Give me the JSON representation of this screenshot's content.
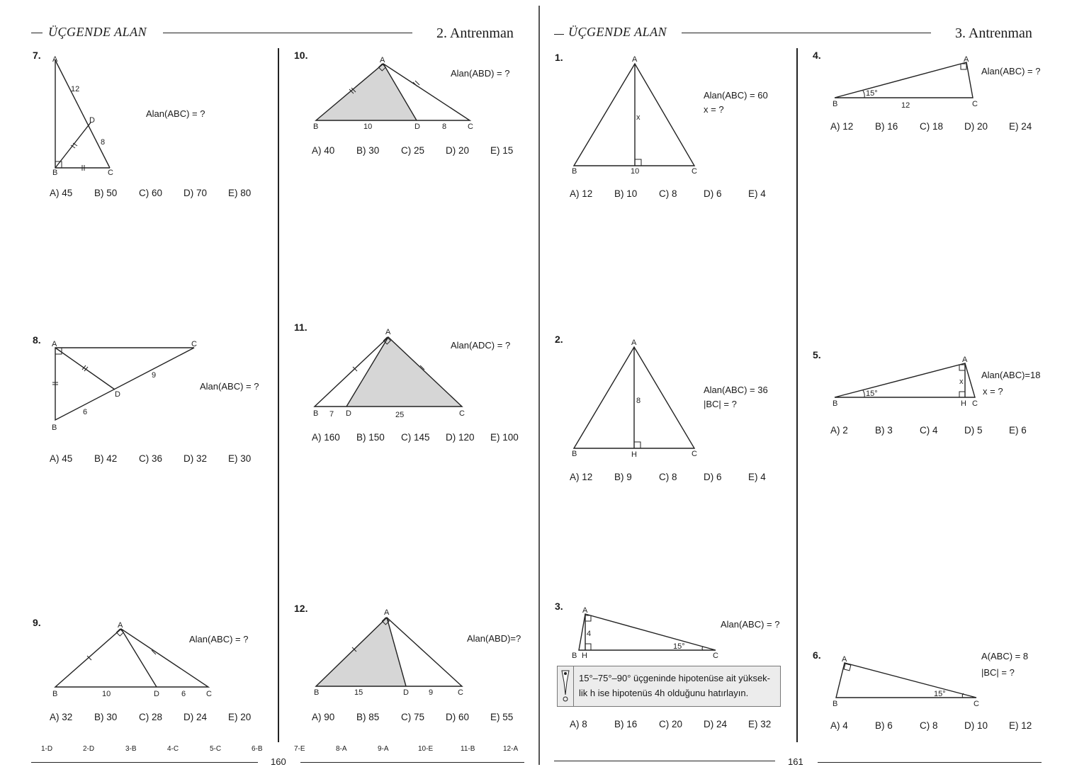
{
  "header": {
    "left_title": "ÜÇGENDE ALAN",
    "left_training": "2. Antrenman",
    "right_title": "ÜÇGENDE ALAN",
    "right_training": "3. Antrenman"
  },
  "questions": {
    "q7": {
      "num": "7.",
      "prompt": "Alan(ABC) = ?",
      "labels": {
        "A": "A",
        "B": "B",
        "C": "C",
        "D": "D",
        "ad": "12",
        "dc": "8"
      },
      "options": [
        "A) 45",
        "B) 50",
        "C) 60",
        "D) 70",
        "E) 80"
      ]
    },
    "q8": {
      "num": "8.",
      "prompt": "Alan(ABC) = ?",
      "labels": {
        "A": "A",
        "B": "B",
        "C": "C",
        "D": "D",
        "dc": "9",
        "bd": "6"
      },
      "options": [
        "A) 45",
        "B) 42",
        "C) 36",
        "D) 32",
        "E) 30"
      ]
    },
    "q9": {
      "num": "9.",
      "prompt": "Alan(ABC) = ?",
      "labels": {
        "A": "A",
        "B": "B",
        "C": "C",
        "D": "D",
        "bd": "10",
        "dc": "6"
      },
      "options": [
        "A) 32",
        "B) 30",
        "C) 28",
        "D) 24",
        "E) 20"
      ]
    },
    "q10": {
      "num": "10.",
      "prompt": "Alan(ABD) = ?",
      "labels": {
        "A": "A",
        "B": "B",
        "C": "C",
        "D": "D",
        "bd": "10",
        "dc": "8"
      },
      "options": [
        "A) 40",
        "B) 30",
        "C) 25",
        "D) 20",
        "E) 15"
      ]
    },
    "q11": {
      "num": "11.",
      "prompt": "Alan(ADC) = ?",
      "labels": {
        "A": "A",
        "B": "B",
        "C": "C",
        "D": "D",
        "bd": "7",
        "dc": "25"
      },
      "options": [
        "A) 160",
        "B) 150",
        "C) 145",
        "D) 120",
        "E) 100"
      ]
    },
    "q12": {
      "num": "12.",
      "prompt": "Alan(ABD)=?",
      "labels": {
        "A": "A",
        "B": "B",
        "C": "C",
        "D": "D",
        "bd": "15",
        "dc": "9"
      },
      "options": [
        "A) 90",
        "B) 85",
        "C) 75",
        "D) 60",
        "E) 55"
      ]
    },
    "r1": {
      "num": "1.",
      "prompt_line1": "Alan(ABC) = 60",
      "prompt_line2": "x = ?",
      "labels": {
        "A": "A",
        "B": "B",
        "C": "C",
        "x": "x",
        "bc": "10"
      },
      "options": [
        "A) 12",
        "B) 10",
        "C) 8",
        "D) 6",
        "E) 4"
      ]
    },
    "r2": {
      "num": "2.",
      "prompt_line1": "Alan(ABC) = 36",
      "prompt_line2": "|BC| = ?",
      "labels": {
        "A": "A",
        "B": "B",
        "C": "C",
        "H": "H",
        "h": "8"
      },
      "options": [
        "A) 12",
        "B) 9",
        "C) 8",
        "D) 6",
        "E) 4"
      ]
    },
    "r3": {
      "num": "3.",
      "prompt": "Alan(ABC) = ?",
      "labels": {
        "A": "A",
        "B": "B",
        "C": "C",
        "H": "H",
        "h": "4",
        "angle": "15°"
      },
      "note_line1": "15°–75°–90° üçgeninde hipotenüse ait yüksek-",
      "note_line2": "lik h ise hipotenüs 4h olduğunu hatırlayın.",
      "options": [
        "A) 8",
        "B) 16",
        "C) 20",
        "D) 24",
        "E) 32"
      ]
    },
    "r4": {
      "num": "4.",
      "prompt": "Alan(ABC) = ?",
      "labels": {
        "A": "A",
        "B": "B",
        "C": "C",
        "bc": "12",
        "angle": "15°"
      },
      "options": [
        "A) 12",
        "B) 16",
        "C) 18",
        "D) 20",
        "E) 24"
      ]
    },
    "r5": {
      "num": "5.",
      "prompt_line1": "Alan(ABC)=18",
      "prompt_line2": "x = ?",
      "labels": {
        "A": "A",
        "B": "B",
        "C": "C",
        "H": "H",
        "x": "x",
        "angle": "15°"
      },
      "options": [
        "A) 2",
        "B) 3",
        "C) 4",
        "D) 5",
        "E) 6"
      ]
    },
    "r6": {
      "num": "6.",
      "prompt_line1": "A(ABC) = 8",
      "prompt_line2": "|BC| = ?",
      "labels": {
        "A": "A",
        "B": "B",
        "C": "C",
        "angle": "15°"
      },
      "options": [
        "A) 4",
        "B) 6",
        "C) 8",
        "D) 10",
        "E) 12"
      ]
    }
  },
  "answer_key": [
    "1-D",
    "2-D",
    "3-B",
    "4-C",
    "5-C",
    "6-B",
    "7-E",
    "8-A",
    "9-A",
    "10-E",
    "11-B",
    "12-A"
  ],
  "page_numbers": {
    "left": "160",
    "right": "161"
  },
  "colors": {
    "ink": "#1a1a1a",
    "shade": "#d6d6d6",
    "note_bg": "#ececec"
  }
}
